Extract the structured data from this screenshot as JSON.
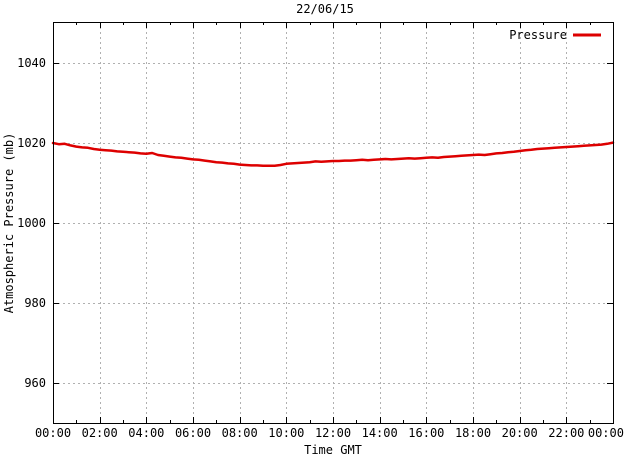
{
  "chart_data": {
    "type": "line",
    "title": "22/06/15",
    "xlabel": "Time GMT",
    "ylabel": "Atmospheric Pressure (mb)",
    "grid": true,
    "legend_position": "top-right-inside",
    "xlim_hours": [
      0,
      24
    ],
    "ylim": [
      950,
      1050
    ],
    "x_ticks": {
      "major_hours": [
        0,
        2,
        4,
        6,
        8,
        10,
        12,
        14,
        16,
        18,
        20,
        22,
        24
      ],
      "major_labels": [
        "00:00",
        "02:00",
        "04:00",
        "06:00",
        "08:00",
        "10:00",
        "12:00",
        "14:00",
        "16:00",
        "18:00",
        "20:00",
        "22:00",
        "00:00"
      ],
      "minor_hours": [
        1,
        3,
        5,
        7,
        9,
        11,
        13,
        15,
        17,
        19,
        21,
        23
      ]
    },
    "y_ticks": {
      "values": [
        960,
        980,
        1000,
        1020,
        1040
      ],
      "labels": [
        "960",
        "980",
        "1000",
        "1020",
        "1040"
      ]
    },
    "colors": {
      "line": "#dd0000",
      "grid": "#b0b0b0",
      "border": "#000000"
    },
    "series": [
      {
        "name": "Pressure",
        "color": "#dd0000",
        "x_start_hours": 0,
        "x_step_hours": 0.25,
        "values": [
          1020.0,
          1019.7,
          1019.8,
          1019.4,
          1019.1,
          1018.9,
          1018.8,
          1018.5,
          1018.3,
          1018.2,
          1018.1,
          1017.9,
          1017.8,
          1017.7,
          1017.6,
          1017.4,
          1017.3,
          1017.5,
          1017.0,
          1016.8,
          1016.6,
          1016.4,
          1016.3,
          1016.1,
          1015.9,
          1015.8,
          1015.6,
          1015.4,
          1015.2,
          1015.1,
          1014.9,
          1014.8,
          1014.6,
          1014.5,
          1014.4,
          1014.4,
          1014.3,
          1014.3,
          1014.3,
          1014.5,
          1014.8,
          1014.9,
          1015.0,
          1015.1,
          1015.2,
          1015.4,
          1015.3,
          1015.4,
          1015.5,
          1015.5,
          1015.6,
          1015.6,
          1015.7,
          1015.8,
          1015.7,
          1015.8,
          1015.9,
          1016.0,
          1015.9,
          1016.0,
          1016.1,
          1016.2,
          1016.1,
          1016.2,
          1016.3,
          1016.4,
          1016.3,
          1016.5,
          1016.6,
          1016.7,
          1016.8,
          1016.9,
          1017.0,
          1017.1,
          1017.0,
          1017.2,
          1017.4,
          1017.5,
          1017.7,
          1017.8,
          1018.0,
          1018.2,
          1018.3,
          1018.5,
          1018.6,
          1018.7,
          1018.8,
          1018.9,
          1019.0,
          1019.1,
          1019.2,
          1019.3,
          1019.4,
          1019.5,
          1019.6,
          1019.8,
          1020.1
        ]
      }
    ]
  }
}
